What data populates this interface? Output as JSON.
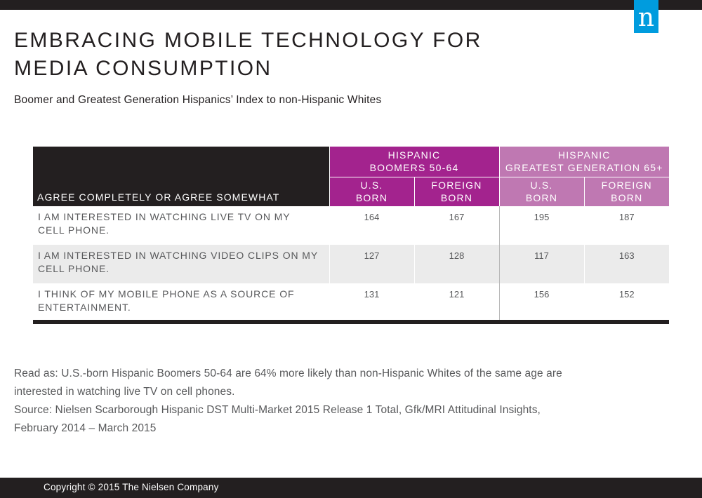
{
  "title_line1": "EMBRACING MOBILE TECHNOLOGY FOR",
  "title_line2": "MEDIA CONSUMPTION",
  "subtitle": "Boomer and Greatest Generation Hispanics’ Index to non-Hispanic Whites",
  "logo_letter": "n",
  "colors": {
    "boomers": "#a3238e",
    "greatest_generation": "#bf78b2",
    "header_dark": "#231f20",
    "brand_blue": "#009cde"
  },
  "chart_data": {
    "type": "table",
    "row_header": "AGREE COMPLETELY OR AGREE SOMEWHAT",
    "groups": [
      {
        "line1": "HISPANIC",
        "line2": "BOOMERS 50-64"
      },
      {
        "line1": "HISPANIC",
        "line2": "GREATEST GENERATION 65+"
      }
    ],
    "columns": [
      {
        "line1": "U.S.",
        "line2": "BORN"
      },
      {
        "line1": "FOREIGN",
        "line2": "BORN"
      },
      {
        "line1": "U.S.",
        "line2": "BORN"
      },
      {
        "line1": "FOREIGN",
        "line2": "BORN"
      }
    ],
    "rows": [
      {
        "line1": "I AM INTERESTED IN WATCHING LIVE TV ON MY",
        "line2": "CELL PHONE.",
        "values": [
          164,
          167,
          195,
          187
        ]
      },
      {
        "line1": "I AM INTERESTED IN WATCHING VIDEO CLIPS ON MY",
        "line2": "CELL PHONE.",
        "values": [
          127,
          128,
          117,
          163
        ]
      },
      {
        "line1": "I THINK OF MY MOBILE PHONE AS A SOURCE OF",
        "line2": "ENTERTAINMENT.",
        "values": [
          131,
          121,
          156,
          152
        ]
      }
    ]
  },
  "notes": {
    "read_as_line1": "Read as: U.S.-born Hispanic Boomers 50-64 are 64% more likely than non-Hispanic Whites of the same age are",
    "read_as_line2": "interested in watching live TV on cell phones.",
    "source_line1": "Source: Nielsen Scarborough Hispanic DST Multi-Market 2015 Release 1 Total, Gfk/MRI Attitudinal Insights,",
    "source_line2": "February 2014 – March 2015"
  },
  "copyright": "Copyright © 2015 The Nielsen Company"
}
